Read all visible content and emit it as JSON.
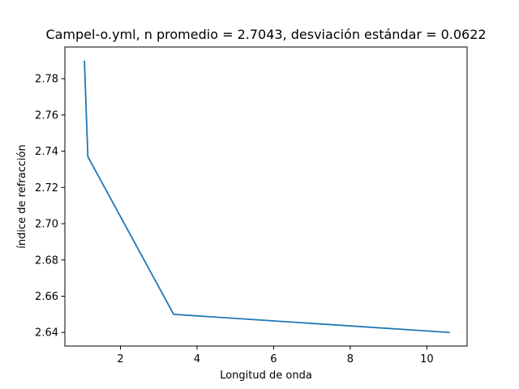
{
  "chart_data": {
    "type": "line",
    "title": "Campel-o.yml, n promedio = 2.7043, desviación estándar = 0.0622",
    "xlabel": "Longitud de onda",
    "ylabel": "índice de refracción",
    "xlim": [
      0.55,
      11.05
    ],
    "ylim": [
      2.6325,
      2.7975
    ],
    "x_ticks": [
      2,
      4,
      6,
      8,
      10
    ],
    "y_ticks": [
      2.64,
      2.66,
      2.68,
      2.7,
      2.72,
      2.74,
      2.76,
      2.78
    ],
    "x_tick_labels": [
      "2",
      "4",
      "6",
      "8",
      "10"
    ],
    "y_tick_labels": [
      "2.64",
      "2.66",
      "2.68",
      "2.70",
      "2.72",
      "2.74",
      "2.76",
      "2.78"
    ],
    "grid": false,
    "series": [
      {
        "color": "#1f77b4",
        "x": [
          1.06,
          1.15,
          3.39,
          10.6
        ],
        "y": [
          2.79,
          2.737,
          2.65,
          2.64
        ]
      }
    ]
  }
}
